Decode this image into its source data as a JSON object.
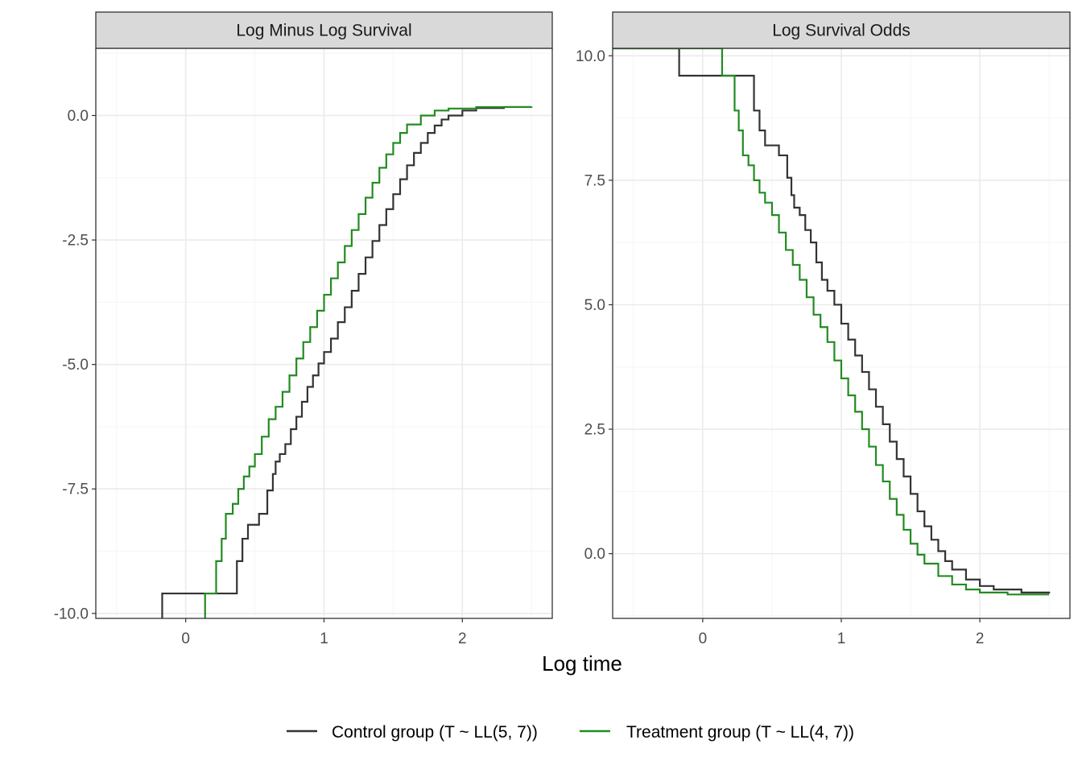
{
  "chart_data": [
    {
      "type": "line",
      "title": "Log Minus Log Survival",
      "xlabel": "Log time",
      "ylabel": "",
      "xlim": [
        -0.65,
        2.65
      ],
      "ylim": [
        -10.1,
        1.35
      ],
      "x_ticks": [
        0,
        1,
        2
      ],
      "y_ticks": [
        0,
        -2.5,
        -5,
        -7.5,
        -10
      ],
      "x_tick_labels": [
        "0",
        "1",
        "2"
      ],
      "y_tick_labels": [
        "0.0",
        "-2.5",
        "-5.0",
        "-7.5",
        "-10.0"
      ],
      "grid": true,
      "step": true,
      "series": [
        {
          "name": "Control group (T ~ LL(5, 7))",
          "color": "#333333",
          "points": [
            [
              -0.17,
              -10.2
            ],
            [
              -0.17,
              -9.6
            ],
            [
              0.37,
              -9.6
            ],
            [
              0.37,
              -8.95
            ],
            [
              0.41,
              -8.95
            ],
            [
              0.41,
              -8.5
            ],
            [
              0.45,
              -8.5
            ],
            [
              0.45,
              -8.22
            ],
            [
              0.53,
              -8.22
            ],
            [
              0.53,
              -8.0
            ],
            [
              0.59,
              -8.0
            ],
            [
              0.59,
              -7.53
            ],
            [
              0.63,
              -7.2
            ],
            [
              0.65,
              -6.95
            ],
            [
              0.68,
              -6.8
            ],
            [
              0.72,
              -6.6
            ],
            [
              0.76,
              -6.3
            ],
            [
              0.8,
              -6.05
            ],
            [
              0.84,
              -5.75
            ],
            [
              0.88,
              -5.45
            ],
            [
              0.92,
              -5.22
            ],
            [
              0.96,
              -4.98
            ],
            [
              1.0,
              -4.75
            ],
            [
              1.05,
              -4.48
            ],
            [
              1.1,
              -4.15
            ],
            [
              1.15,
              -3.85
            ],
            [
              1.2,
              -3.52
            ],
            [
              1.25,
              -3.18
            ],
            [
              1.3,
              -2.85
            ],
            [
              1.35,
              -2.52
            ],
            [
              1.4,
              -2.2
            ],
            [
              1.45,
              -1.88
            ],
            [
              1.5,
              -1.58
            ],
            [
              1.55,
              -1.28
            ],
            [
              1.6,
              -1.0
            ],
            [
              1.65,
              -0.75
            ],
            [
              1.7,
              -0.55
            ],
            [
              1.75,
              -0.35
            ],
            [
              1.8,
              -0.2
            ],
            [
              1.85,
              -0.08
            ],
            [
              1.9,
              0.0
            ],
            [
              2.0,
              0.1
            ],
            [
              2.1,
              0.15
            ],
            [
              2.3,
              0.17
            ],
            [
              2.5,
              0.17
            ]
          ]
        },
        {
          "name": "Treatment group (T ~ LL(4, 7))",
          "color": "#228B22",
          "points": [
            [
              0.14,
              -10.2
            ],
            [
              0.14,
              -9.6
            ],
            [
              0.22,
              -9.6
            ],
            [
              0.22,
              -8.95
            ],
            [
              0.26,
              -8.95
            ],
            [
              0.26,
              -8.5
            ],
            [
              0.29,
              -8.5
            ],
            [
              0.29,
              -8.0
            ],
            [
              0.34,
              -7.8
            ],
            [
              0.38,
              -7.5
            ],
            [
              0.42,
              -7.25
            ],
            [
              0.46,
              -7.05
            ],
            [
              0.5,
              -6.8
            ],
            [
              0.55,
              -6.45
            ],
            [
              0.6,
              -6.1
            ],
            [
              0.65,
              -5.85
            ],
            [
              0.7,
              -5.55
            ],
            [
              0.75,
              -5.22
            ],
            [
              0.8,
              -4.88
            ],
            [
              0.85,
              -4.55
            ],
            [
              0.9,
              -4.25
            ],
            [
              0.95,
              -3.92
            ],
            [
              1.0,
              -3.6
            ],
            [
              1.05,
              -3.27
            ],
            [
              1.1,
              -2.95
            ],
            [
              1.15,
              -2.62
            ],
            [
              1.2,
              -2.3
            ],
            [
              1.25,
              -1.98
            ],
            [
              1.3,
              -1.65
            ],
            [
              1.35,
              -1.35
            ],
            [
              1.4,
              -1.05
            ],
            [
              1.45,
              -0.78
            ],
            [
              1.5,
              -0.55
            ],
            [
              1.55,
              -0.35
            ],
            [
              1.6,
              -0.18
            ],
            [
              1.7,
              0.0
            ],
            [
              1.8,
              0.1
            ],
            [
              1.9,
              0.14
            ],
            [
              2.1,
              0.17
            ],
            [
              2.5,
              0.18
            ]
          ]
        }
      ]
    },
    {
      "type": "line",
      "title": "Log Survival Odds",
      "xlabel": "Log time",
      "ylabel": "",
      "xlim": [
        -0.65,
        2.65
      ],
      "ylim": [
        -1.3,
        10.15
      ],
      "x_ticks": [
        0,
        1,
        2
      ],
      "y_ticks": [
        10,
        7.5,
        5,
        2.5,
        0
      ],
      "x_tick_labels": [
        "0",
        "1",
        "2"
      ],
      "y_tick_labels": [
        "10.0",
        "7.5",
        "5.0",
        "2.5",
        "0.0"
      ],
      "grid": true,
      "step": true,
      "series": [
        {
          "name": "Control group (T ~ LL(5, 7))",
          "color": "#333333",
          "points": [
            [
              -0.65,
              10.15
            ],
            [
              -0.17,
              10.15
            ],
            [
              -0.17,
              9.6
            ],
            [
              0.37,
              9.6
            ],
            [
              0.37,
              8.9
            ],
            [
              0.41,
              8.9
            ],
            [
              0.41,
              8.5
            ],
            [
              0.45,
              8.5
            ],
            [
              0.45,
              8.2
            ],
            [
              0.55,
              8.2
            ],
            [
              0.55,
              8.0
            ],
            [
              0.61,
              8.0
            ],
            [
              0.61,
              7.55
            ],
            [
              0.64,
              7.2
            ],
            [
              0.66,
              6.95
            ],
            [
              0.7,
              6.8
            ],
            [
              0.74,
              6.5
            ],
            [
              0.78,
              6.25
            ],
            [
              0.82,
              5.85
            ],
            [
              0.86,
              5.5
            ],
            [
              0.9,
              5.28
            ],
            [
              0.95,
              5.0
            ],
            [
              1.0,
              4.62
            ],
            [
              1.05,
              4.3
            ],
            [
              1.1,
              3.98
            ],
            [
              1.15,
              3.65
            ],
            [
              1.2,
              3.3
            ],
            [
              1.25,
              2.95
            ],
            [
              1.3,
              2.6
            ],
            [
              1.35,
              2.25
            ],
            [
              1.4,
              1.9
            ],
            [
              1.45,
              1.55
            ],
            [
              1.5,
              1.2
            ],
            [
              1.55,
              0.85
            ],
            [
              1.6,
              0.55
            ],
            [
              1.65,
              0.28
            ],
            [
              1.7,
              0.05
            ],
            [
              1.75,
              -0.15
            ],
            [
              1.8,
              -0.32
            ],
            [
              1.9,
              -0.52
            ],
            [
              2.0,
              -0.65
            ],
            [
              2.1,
              -0.72
            ],
            [
              2.3,
              -0.78
            ],
            [
              2.5,
              -0.8
            ]
          ]
        },
        {
          "name": "Treatment group (T ~ LL(4, 7))",
          "color": "#228B22",
          "points": [
            [
              -0.65,
              10.15
            ],
            [
              0.14,
              10.15
            ],
            [
              0.14,
              9.6
            ],
            [
              0.23,
              9.6
            ],
            [
              0.23,
              8.9
            ],
            [
              0.26,
              8.9
            ],
            [
              0.26,
              8.5
            ],
            [
              0.29,
              8.5
            ],
            [
              0.29,
              8.0
            ],
            [
              0.33,
              7.8
            ],
            [
              0.37,
              7.5
            ],
            [
              0.41,
              7.25
            ],
            [
              0.45,
              7.05
            ],
            [
              0.5,
              6.8
            ],
            [
              0.55,
              6.45
            ],
            [
              0.6,
              6.1
            ],
            [
              0.65,
              5.8
            ],
            [
              0.7,
              5.5
            ],
            [
              0.75,
              5.15
            ],
            [
              0.8,
              4.8
            ],
            [
              0.85,
              4.55
            ],
            [
              0.9,
              4.25
            ],
            [
              0.95,
              3.88
            ],
            [
              1.0,
              3.52
            ],
            [
              1.05,
              3.18
            ],
            [
              1.1,
              2.85
            ],
            [
              1.15,
              2.5
            ],
            [
              1.2,
              2.15
            ],
            [
              1.25,
              1.78
            ],
            [
              1.3,
              1.45
            ],
            [
              1.35,
              1.1
            ],
            [
              1.4,
              0.78
            ],
            [
              1.45,
              0.48
            ],
            [
              1.5,
              0.2
            ],
            [
              1.55,
              -0.02
            ],
            [
              1.6,
              -0.2
            ],
            [
              1.7,
              -0.45
            ],
            [
              1.8,
              -0.62
            ],
            [
              1.9,
              -0.72
            ],
            [
              2.0,
              -0.78
            ],
            [
              2.2,
              -0.82
            ],
            [
              2.5,
              -0.82
            ]
          ]
        }
      ]
    }
  ],
  "axis_title": "Log time",
  "legend": {
    "position": "bottom",
    "items": [
      {
        "label": "Control group (T ~ LL(5, 7))",
        "color": "#333333"
      },
      {
        "label": "Treatment group (T ~ LL(4, 7))",
        "color": "#228B22"
      }
    ]
  },
  "colors": {
    "strip_bg": "#d9d9d9",
    "grid_major": "#ebebeb",
    "grid_minor": "#f5f5f5",
    "panel_border": "#333333"
  }
}
